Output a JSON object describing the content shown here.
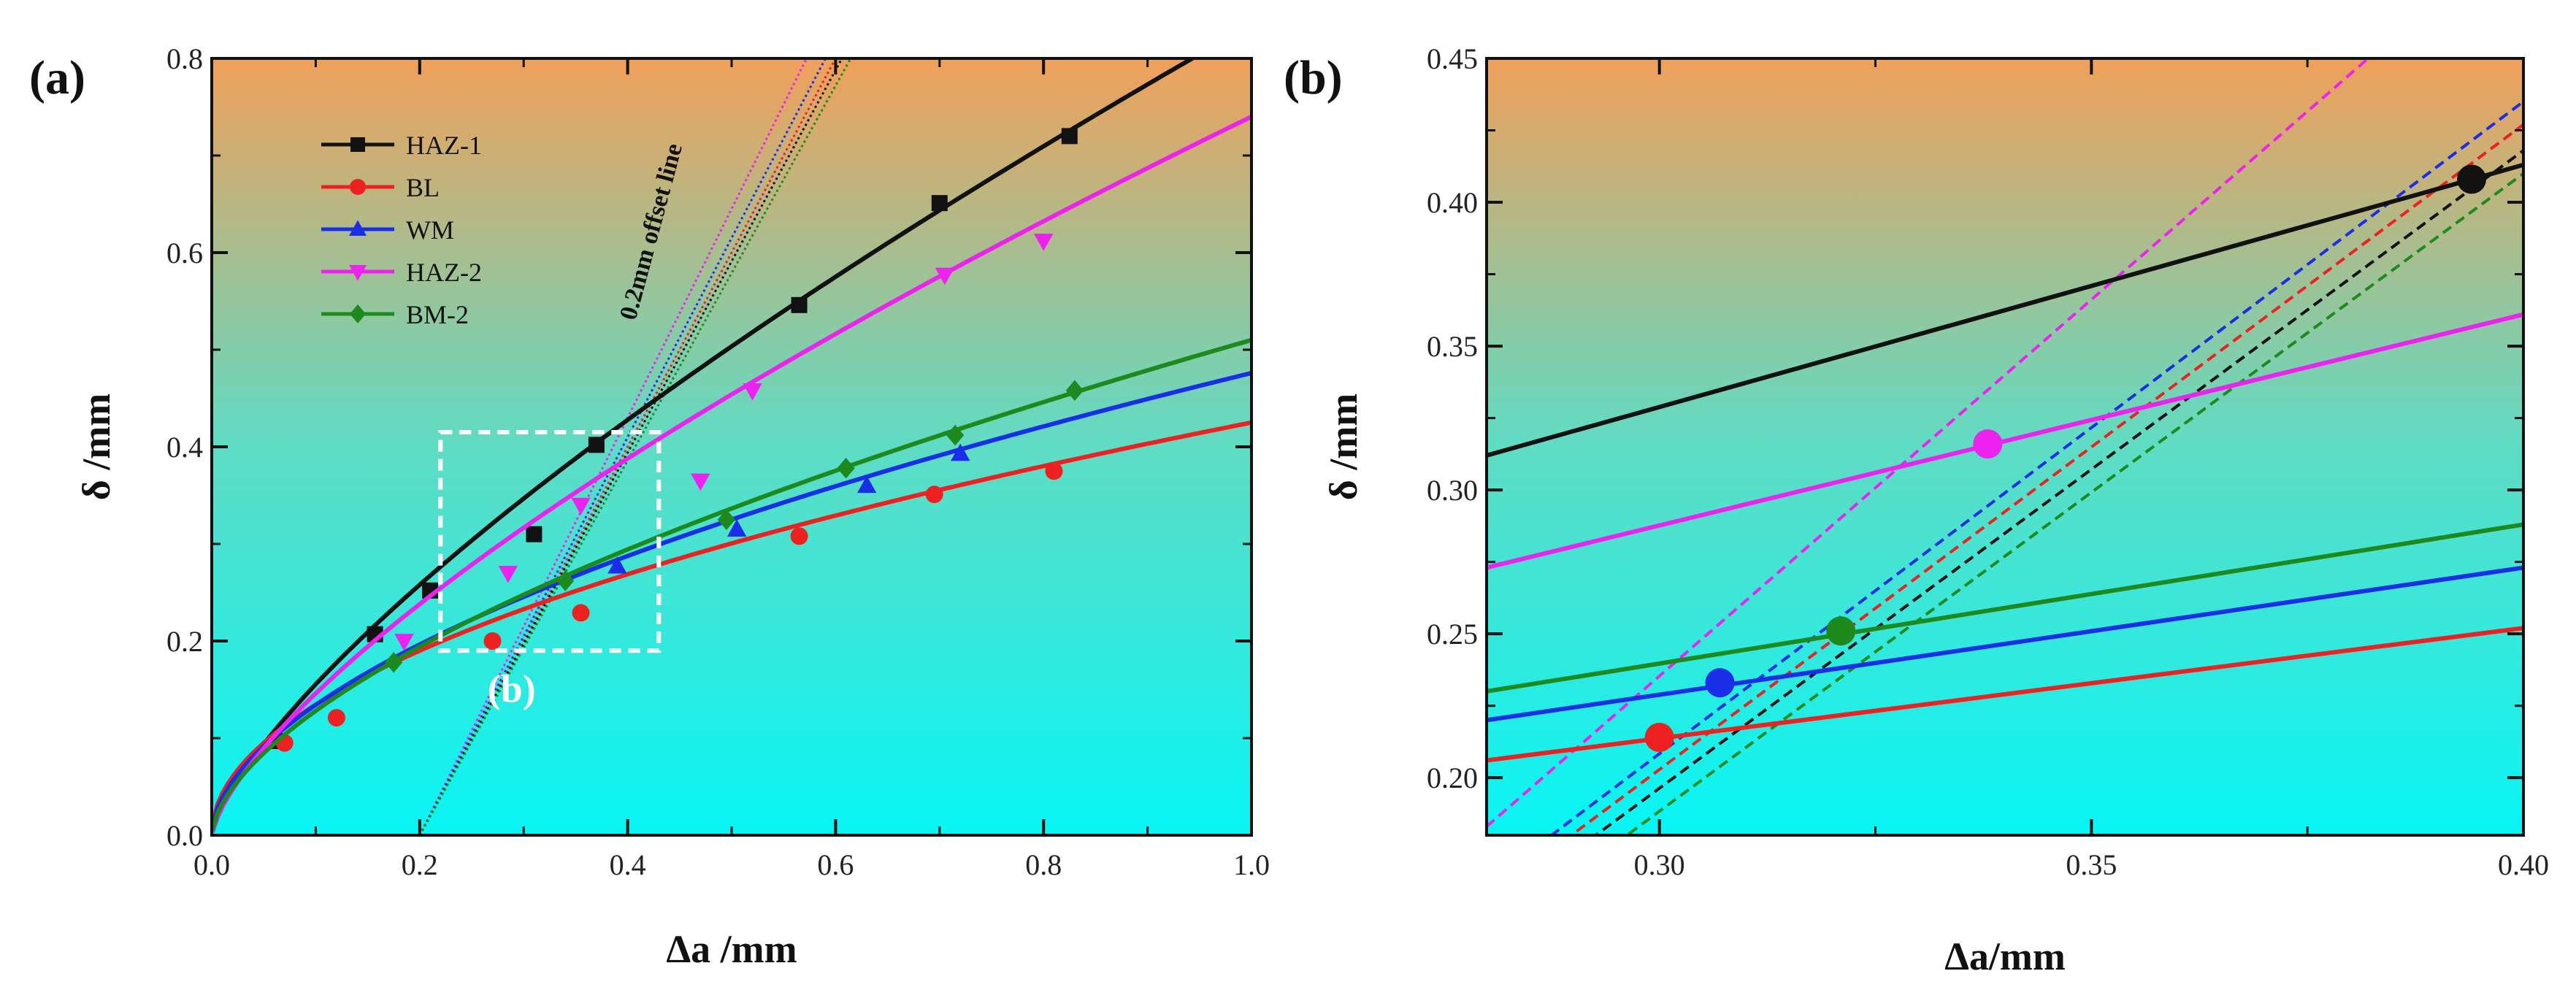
{
  "chart_data": [
    {
      "panel": "(a)",
      "type": "line",
      "xlabel": "Δa /mm",
      "ylabel": "δ /mm",
      "xlim": [
        0,
        1.0
      ],
      "ylim": [
        0,
        0.8
      ],
      "xticks": [
        "0.0",
        "0.2",
        "0.4",
        "0.6",
        "0.8",
        "1.0"
      ],
      "yticks": [
        "0.0",
        "0.2",
        "0.4",
        "0.6",
        "0.8"
      ],
      "offset_line_label": "0.2mm offset line",
      "zoom_box_label": "(b)",
      "zoom_box": {
        "x": [
          0.22,
          0.43
        ],
        "y": [
          0.19,
          0.415
        ]
      },
      "legend": [
        "HAZ-1",
        "BL",
        "WM",
        "HAZ-2",
        "BM-2"
      ],
      "series": [
        {
          "name": "HAZ-1",
          "color": "#111111",
          "marker": "square",
          "fit": {
            "a": 0.835,
            "b": 0.73
          },
          "points": [
            [
              0.065,
              0.097
            ],
            [
              0.157,
              0.207
            ],
            [
              0.21,
              0.252
            ],
            [
              0.31,
              0.31
            ],
            [
              0.37,
              0.402
            ],
            [
              0.565,
              0.546
            ],
            [
              0.7,
              0.651
            ],
            [
              0.825,
              0.72
            ]
          ]
        },
        {
          "name": "BL",
          "color": "#ee2020",
          "marker": "circle",
          "fit": {
            "a": 0.425,
            "b": 0.5
          },
          "points": [
            [
              0.07,
              0.095
            ],
            [
              0.12,
              0.121
            ],
            [
              0.27,
              0.2
            ],
            [
              0.355,
              0.229
            ],
            [
              0.565,
              0.308
            ],
            [
              0.695,
              0.351
            ],
            [
              0.81,
              0.375
            ]
          ]
        },
        {
          "name": "WM",
          "color": "#1a2ee8",
          "marker": "triangle-up",
          "fit": {
            "a": 0.476,
            "b": 0.55
          },
          "points": [
            [
              0.39,
              0.277
            ],
            [
              0.505,
              0.315
            ],
            [
              0.63,
              0.36
            ],
            [
              0.72,
              0.393
            ]
          ]
        },
        {
          "name": "HAZ-2",
          "color": "#ee22ee",
          "marker": "triangle-down",
          "fit": {
            "a": 0.74,
            "b": 0.705
          },
          "points": [
            [
              0.185,
              0.2
            ],
            [
              0.285,
              0.27
            ],
            [
              0.355,
              0.34
            ],
            [
              0.47,
              0.365
            ],
            [
              0.52,
              0.458
            ],
            [
              0.705,
              0.577
            ],
            [
              0.8,
              0.612
            ]
          ]
        },
        {
          "name": "BM-2",
          "color": "#1e8a1e",
          "marker": "diamond",
          "fit": {
            "a": 0.51,
            "b": 0.6
          },
          "points": [
            [
              0.175,
              0.178
            ],
            [
              0.34,
              0.262
            ],
            [
              0.495,
              0.325
            ],
            [
              0.61,
              0.378
            ],
            [
              0.715,
              0.412
            ],
            [
              0.83,
              0.458
            ]
          ]
        }
      ],
      "offset_lines": [
        {
          "color": "#ee22ee",
          "x0": 0.2,
          "slope": 2.15
        },
        {
          "color": "#1a2ee8",
          "x0": 0.2,
          "slope": 2.05
        },
        {
          "color": "#ee2020",
          "x0": 0.2,
          "slope": 2.0
        },
        {
          "color": "#111111",
          "x0": 0.2,
          "slope": 1.97
        },
        {
          "color": "#1e8a1e",
          "x0": 0.2,
          "slope": 1.93
        }
      ]
    },
    {
      "panel": "(b)",
      "type": "line",
      "xlabel": "Δa/mm",
      "ylabel": "δ /mm",
      "xlim": [
        0.28,
        0.4
      ],
      "ylim": [
        0.18,
        0.45
      ],
      "xticks": [
        "0.30",
        "0.35",
        "0.40"
      ],
      "yticks": [
        "0.20",
        "0.25",
        "0.30",
        "0.35",
        "0.40",
        "0.45"
      ],
      "series": [
        {
          "name": "HAZ-1",
          "color": "#111111",
          "line": [
            [
              0.28,
              0.312
            ],
            [
              0.4,
              0.413
            ]
          ],
          "intersection": [
            0.394,
            0.408
          ]
        },
        {
          "name": "HAZ-2",
          "color": "#ee22ee",
          "line": [
            [
              0.28,
              0.273
            ],
            [
              0.4,
              0.361
            ]
          ],
          "intersection": [
            0.338,
            0.316
          ]
        },
        {
          "name": "BM-2",
          "color": "#1e8a1e",
          "line": [
            [
              0.28,
              0.23
            ],
            [
              0.4,
              0.288
            ]
          ],
          "intersection": [
            0.321,
            0.251
          ]
        },
        {
          "name": "WM",
          "color": "#1a2ee8",
          "line": [
            [
              0.28,
              0.22
            ],
            [
              0.4,
              0.273
            ]
          ],
          "intersection": [
            0.307,
            0.233
          ]
        },
        {
          "name": "BL",
          "color": "#ee2020",
          "line": [
            [
              0.28,
              0.206
            ],
            [
              0.4,
              0.252
            ]
          ],
          "intersection": [
            0.3,
            0.214
          ]
        }
      ],
      "offset_lines": [
        {
          "color": "#ee22ee",
          "line": [
            [
              0.28,
              0.183
            ],
            [
              0.4,
              0.497
            ]
          ]
        },
        {
          "color": "#1a2ee8",
          "line": [
            [
              0.28,
              0.163
            ],
            [
              0.4,
              0.435
            ]
          ]
        },
        {
          "color": "#ee2020",
          "line": [
            [
              0.28,
              0.158
            ],
            [
              0.4,
              0.427
            ]
          ]
        },
        {
          "color": "#111111",
          "line": [
            [
              0.28,
              0.152
            ],
            [
              0.4,
              0.418
            ]
          ]
        },
        {
          "color": "#1e8a1e",
          "line": [
            [
              0.28,
              0.144
            ],
            [
              0.4,
              0.41
            ]
          ]
        }
      ]
    }
  ],
  "theme": {
    "gradient_top": "#f0a05a",
    "gradient_mid": "#5fdcc4",
    "gradient_bottom": "#08f5f5"
  }
}
